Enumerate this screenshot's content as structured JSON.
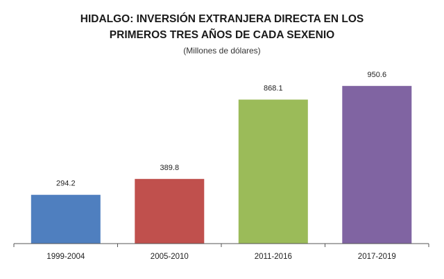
{
  "chart_data": {
    "type": "bar",
    "title_lines": [
      "HIDALGO: INVERSIÓN EXTRANJERA DIRECTA EN LOS",
      "PRIMEROS TRES AÑOS DE CADA SEXENIO"
    ],
    "subtitle": "(Millones de dólares)",
    "categories": [
      "1999-2004",
      "2005-2010",
      "2011-2016",
      "2017-2019"
    ],
    "values": [
      294.2,
      389.8,
      868.1,
      950.6
    ],
    "value_labels": [
      "294.2",
      "389.8",
      "868.1",
      "950.6"
    ],
    "bar_colors": [
      "#4f7fbf",
      "#c0504d",
      "#9bbb59",
      "#8064a2"
    ],
    "ylim": [
      0,
      1000
    ],
    "grid": false,
    "legend": "none"
  }
}
